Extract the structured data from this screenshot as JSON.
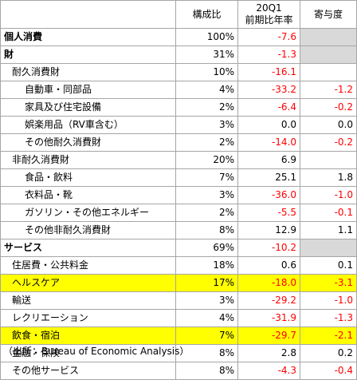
{
  "headers": {
    "share": "構成比",
    "growth_line1": "20Q1",
    "growth_line2": "前期比年率",
    "contribution": "寄与度"
  },
  "rows": [
    {
      "label": "個人消費",
      "share": "100%",
      "growth": "-7.6",
      "contrib": ""
    },
    {
      "label": "財",
      "share": "31%",
      "growth": "-1.3",
      "contrib": ""
    },
    {
      "label": "耐久消費財",
      "share": "10%",
      "growth": "-16.1",
      "contrib": ""
    },
    {
      "label": "自動車・同部品",
      "share": "4%",
      "growth": "-33.2",
      "contrib": "-1.2"
    },
    {
      "label": "家具及び住宅設備",
      "share": "2%",
      "growth": "-6.4",
      "contrib": "-0.2"
    },
    {
      "label": "娯楽用品（RV車含む）",
      "share": "3%",
      "growth": "0.0",
      "contrib": "0.0"
    },
    {
      "label": "その他耐久消費財",
      "share": "2%",
      "growth": "-14.0",
      "contrib": "-0.2"
    },
    {
      "label": "非耐久消費財",
      "share": "20%",
      "growth": "6.9",
      "contrib": ""
    },
    {
      "label": "食品・飲料",
      "share": "7%",
      "growth": "25.1",
      "contrib": "1.8"
    },
    {
      "label": "衣料品・靴",
      "share": "3%",
      "growth": "-36.0",
      "contrib": "-1.0"
    },
    {
      "label": "ガソリン・その他エネルギー",
      "share": "2%",
      "growth": "-5.5",
      "contrib": "-0.1"
    },
    {
      "label": "その他非耐久消費財",
      "share": "8%",
      "growth": "12.9",
      "contrib": "1.1"
    },
    {
      "label": "サービス",
      "share": "69%",
      "growth": "-10.2",
      "contrib": ""
    },
    {
      "label": "住居費・公共料金",
      "share": "18%",
      "growth": "0.6",
      "contrib": "0.1"
    },
    {
      "label": "ヘルスケア",
      "share": "17%",
      "growth": "-18.0",
      "contrib": "-3.1"
    },
    {
      "label": "輸送",
      "share": "3%",
      "growth": "-29.2",
      "contrib": "-1.0"
    },
    {
      "label": "レクリエーション",
      "share": "4%",
      "growth": "-31.9",
      "contrib": "-1.3"
    },
    {
      "label": "飲食・宿泊",
      "share": "7%",
      "growth": "-29.7",
      "contrib": "-2.1"
    },
    {
      "label": "金融・保険",
      "share": "8%",
      "growth": "2.8",
      "contrib": "0.2"
    },
    {
      "label": "その他サービス",
      "share": "8%",
      "growth": "-4.3",
      "contrib": "-0.4"
    }
  ],
  "source": "（出所：Bureau of Economic Analysis）"
}
